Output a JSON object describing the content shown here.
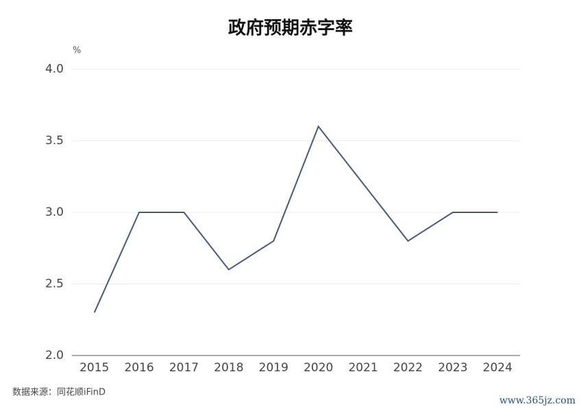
{
  "chart_data": {
    "type": "line",
    "title": "政府预期赤字率",
    "unit": "%",
    "categories": [
      "2015",
      "2016",
      "2017",
      "2018",
      "2019",
      "2020",
      "2021",
      "2022",
      "2023",
      "2024"
    ],
    "series": [
      {
        "name": "政府预期赤字率",
        "color": "#4a5878",
        "values": [
          2.3,
          3.0,
          3.0,
          2.6,
          2.8,
          3.6,
          3.2,
          2.8,
          3.0,
          3.0
        ]
      }
    ],
    "ylim": [
      2,
      4
    ],
    "yticks": [
      {
        "value": 2,
        "label": "2.0"
      },
      2.5,
      {
        "value": 3,
        "label": "3.0"
      },
      3.5,
      {
        "value": 4,
        "label": "4.0"
      }
    ],
    "grid": true,
    "source": "数据来源：同花顺iFinD",
    "watermark": "www.365jz.com"
  }
}
